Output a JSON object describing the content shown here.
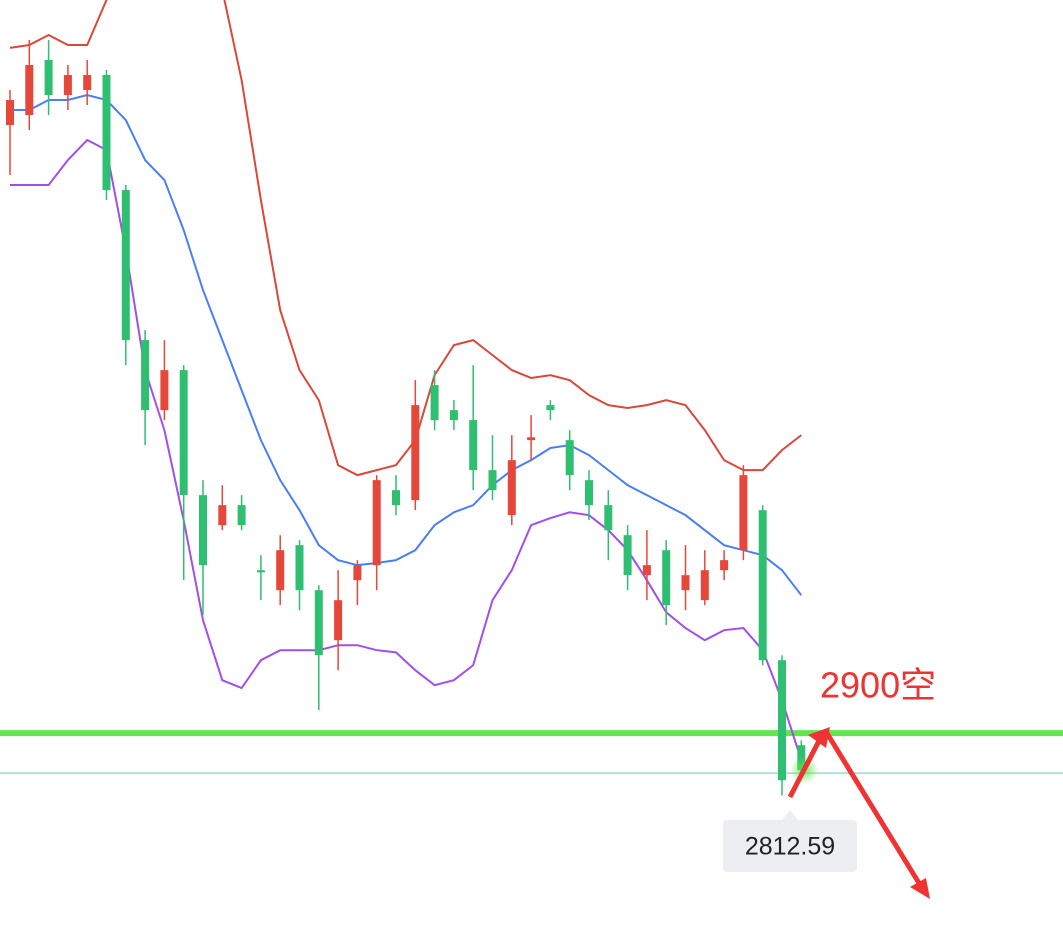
{
  "chart_data": {
    "type": "candlestick",
    "ylim": [
      2609,
      3926
    ],
    "up_color": "#e5483b",
    "down_color": "#2fbf71",
    "open": [
      3751,
      3765,
      3842,
      3793,
      3800,
      3821,
      3660,
      3450,
      3352,
      3408,
      3233,
      3191,
      3219,
      3128,
      3100,
      3163,
      3100,
      3030,
      3114,
      3135,
      3240,
      3226,
      3387,
      3352,
      3338,
      3268,
      3205,
      3310,
      3359,
      3310,
      3254,
      3219,
      3177,
      3121,
      3156,
      3100,
      3086,
      3128,
      3156,
      3212,
      3002,
      2883
    ],
    "close": [
      3786,
      3835,
      3793,
      3821,
      3821,
      3660,
      3450,
      3352,
      3408,
      3233,
      3135,
      3219,
      3191,
      3125,
      3156,
      3100,
      3009,
      3086,
      3135,
      3254,
      3219,
      3359,
      3338,
      3338,
      3268,
      3240,
      3282,
      3314,
      3352,
      3261,
      3219,
      3184,
      3121,
      3135,
      3079,
      3121,
      3128,
      3142,
      3261,
      3002,
      2834,
      2848
    ],
    "high": [
      3800,
      3870,
      3870,
      3835,
      3842,
      3828,
      3667,
      3464,
      3450,
      3415,
      3254,
      3247,
      3233,
      3149,
      3177,
      3170,
      3107,
      3128,
      3142,
      3261,
      3261,
      3394,
      3408,
      3366,
      3415,
      3317,
      3317,
      3345,
      3366,
      3324,
      3268,
      3240,
      3191,
      3184,
      3170,
      3163,
      3156,
      3156,
      3275,
      3219,
      3009,
      2890
    ],
    "low": [
      3681,
      3744,
      3765,
      3772,
      3779,
      3646,
      3415,
      3303,
      3338,
      3114,
      3065,
      3184,
      3184,
      3086,
      3079,
      3072,
      2932,
      2988,
      3079,
      3100,
      3205,
      3212,
      3324,
      3324,
      3240,
      3226,
      3191,
      3282,
      3338,
      3240,
      3198,
      3142,
      3100,
      3086,
      3051,
      3072,
      3079,
      3114,
      3142,
      2995,
      2812.59,
      2837
    ],
    "upper": {
      "color": "#d9483a",
      "values": [
        3859,
        3863,
        3877,
        3863,
        3863,
        3926,
        3982,
        4038,
        4038,
        4024,
        4010,
        3940,
        3814,
        3646,
        3492,
        3408,
        3366,
        3275,
        3261,
        3268,
        3275,
        3310,
        3401,
        3443,
        3450,
        3429,
        3408,
        3397,
        3401,
        3394,
        3373,
        3359,
        3355,
        3359,
        3366,
        3359,
        3324,
        3282,
        3268,
        3268,
        3296,
        3317
      ]
    },
    "middle": {
      "color": "#4a7ff0",
      "values": [
        3772,
        3772,
        3786,
        3786,
        3793,
        3786,
        3758,
        3702,
        3674,
        3604,
        3520,
        3450,
        3380,
        3310,
        3254,
        3212,
        3163,
        3142,
        3135,
        3138,
        3142,
        3156,
        3191,
        3209,
        3219,
        3247,
        3268,
        3282,
        3299,
        3303,
        3289,
        3268,
        3247,
        3233,
        3219,
        3205,
        3184,
        3163,
        3156,
        3149,
        3128,
        3093
      ]
    },
    "lower": {
      "color": "#a24fe9",
      "values": [
        3667,
        3667,
        3667,
        3702,
        3730,
        3716,
        3576,
        3408,
        3324,
        3198,
        3058,
        2974,
        2963,
        3002,
        3016,
        3016,
        3016,
        3023,
        3023,
        3016,
        3013,
        2988,
        2967,
        2974,
        2995,
        3086,
        3128,
        3191,
        3201,
        3209,
        3205,
        3184,
        3156,
        3114,
        3069,
        3047,
        3030,
        3044,
        3047,
        3016,
        2946,
        2862
      ]
    },
    "level_line": {
      "value": 2900,
      "color": "#5ee84a"
    },
    "price_line": {
      "value": 2844,
      "color": "#9fd9c2"
    },
    "annotation": "2900空",
    "low_label_index": 40
  }
}
